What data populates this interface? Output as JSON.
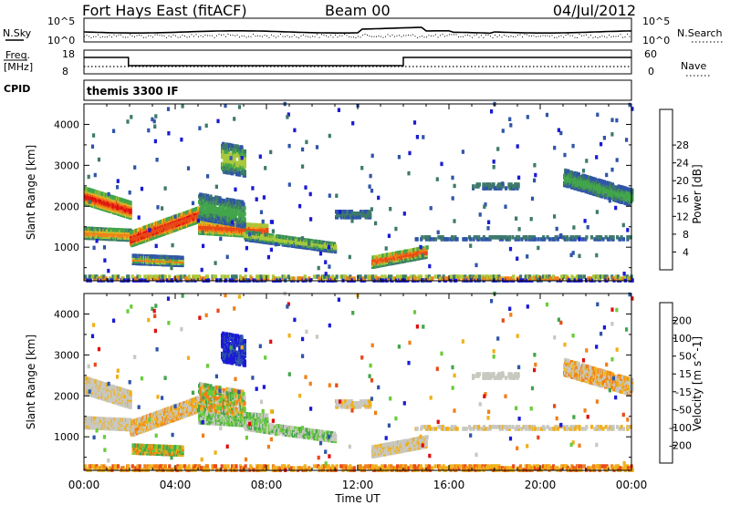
{
  "header": {
    "station": "Fort Hays East (fitACF)",
    "beam": "Beam 00",
    "date": "04/Jul/2012"
  },
  "summary": {
    "nsky_label": "N.Sky",
    "nsky_ticks": [
      "10^5",
      "10^0"
    ],
    "nsearch_label": "N.Search",
    "freq_label_1": "Freq.",
    "freq_label_2": "[MHz]",
    "freq_ticks": [
      "18",
      "8"
    ],
    "nave_label": "Nave",
    "nave_ticks": [
      "60",
      "0"
    ],
    "cpid_label": "CPID",
    "cpid_value": "themis 3300 IF"
  },
  "chart_data": [
    {
      "type": "heatmap",
      "name": "power",
      "ylabel": "Slant Range [km]",
      "xlabel": "Time UT",
      "xlim_hours": [
        0,
        24
      ],
      "ylim_km": [
        180,
        4500
      ],
      "x_ticks": [
        "00:00",
        "04:00",
        "08:00",
        "12:00",
        "16:00",
        "20:00",
        "00:00"
      ],
      "y_ticks": [
        "1000",
        "2000",
        "3000",
        "4000"
      ],
      "colorbar": {
        "label": "Power [dB]",
        "ticks": [
          "4",
          "8",
          "12",
          "16",
          "20",
          "24",
          "28"
        ],
        "colors": [
          "#1a1ad6",
          "#2f55a8",
          "#3e7a6a",
          "#43a54b",
          "#a8c83c",
          "#f0b01a",
          "#f08018",
          "#e84a18",
          "#e01010"
        ]
      }
    },
    {
      "type": "heatmap",
      "name": "velocity",
      "ylabel": "Slant Range [km]",
      "xlabel": "Time UT",
      "xlim_hours": [
        0,
        24
      ],
      "ylim_km": [
        180,
        4500
      ],
      "x_ticks": [
        "00:00",
        "04:00",
        "08:00",
        "12:00",
        "16:00",
        "20:00",
        "00:00"
      ],
      "y_ticks": [
        "1000",
        "2000",
        "3000",
        "4000"
      ],
      "colorbar": {
        "label": "Velocity [m s^-1]",
        "ticks": [
          "200",
          "100",
          "50",
          "15",
          "-15",
          "-50",
          "-100",
          "-200"
        ],
        "colors": [
          "#1a1ad6",
          "#2f55a8",
          "#43a54b",
          "#6acc3a",
          "#c8c8c0",
          "#f0b01a",
          "#f08018",
          "#e84a18",
          "#e01010"
        ]
      }
    }
  ]
}
